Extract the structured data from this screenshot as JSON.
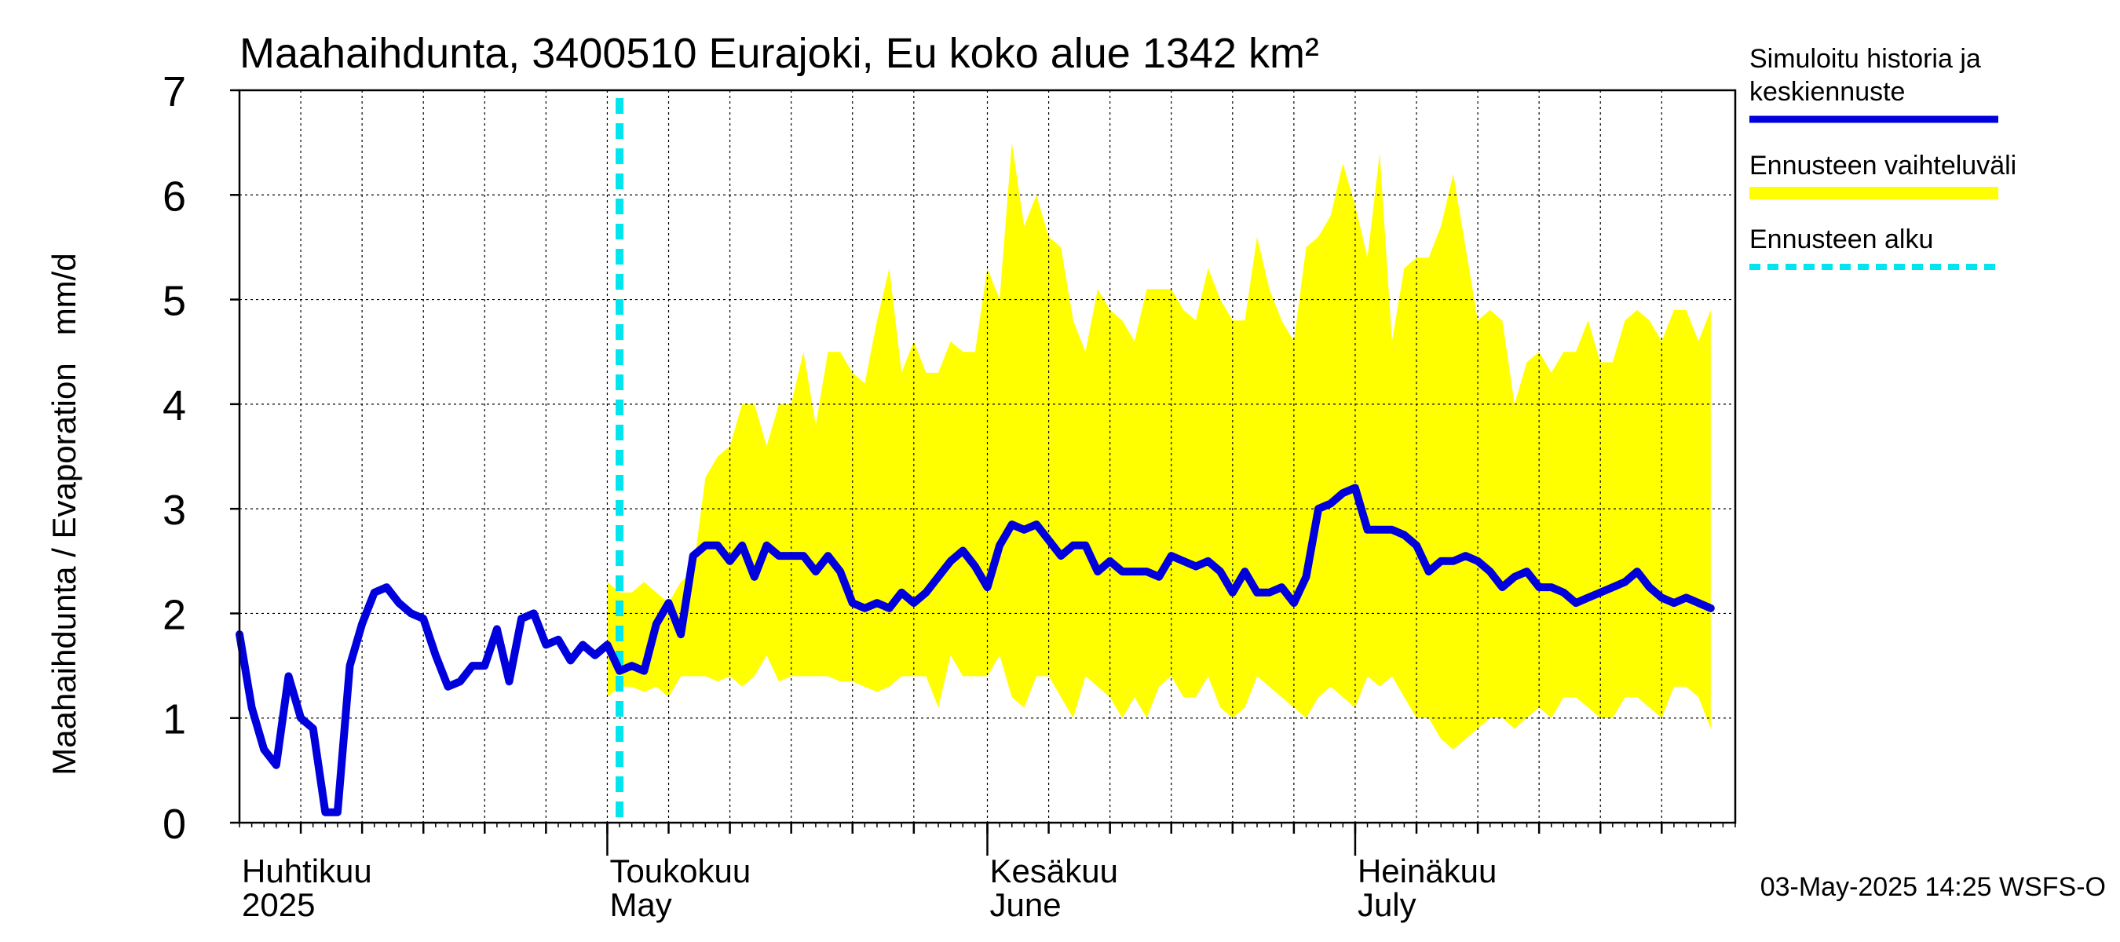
{
  "chart_data": {
    "type": "area",
    "title": "Maahaihdunta, 3400510 Eurajoki, Eu koko alue 1342 km²",
    "ylabel": "Maahaihdunta / Evaporation   mm/d",
    "xlabel": "",
    "ylim": [
      0,
      7
    ],
    "yticks": [
      0,
      1,
      2,
      3,
      4,
      5,
      6,
      7
    ],
    "xlim": [
      "2025-04-01",
      "2025-08-01"
    ],
    "grid": true,
    "month_labels": [
      {
        "date": "2025-04-01",
        "fi": "Huhtikuu",
        "en": "2025"
      },
      {
        "date": "2025-05-01",
        "fi": "Toukokuu",
        "en": "May"
      },
      {
        "date": "2025-06-01",
        "fi": "Kesäkuu",
        "en": "June"
      },
      {
        "date": "2025-07-01",
        "fi": "Heinäkuu",
        "en": "July"
      }
    ],
    "forecast_start": "2025-05-02",
    "timestamp": "03-May-2025 14:25 WSFS-O",
    "colors": {
      "history": "#0000dd",
      "range": "#ffff00",
      "forecast_start": "#00e5ee"
    },
    "legend": {
      "placement": "right",
      "entries": [
        {
          "label": "Simuloitu historia ja keskiennuste",
          "lines": [
            "Simuloitu historia ja",
            "keskiennuste"
          ],
          "style": "line",
          "color": "#0000dd"
        },
        {
          "label": "Ennusteen vaihteluväli",
          "lines": [
            "Ennusteen vaihteluväli"
          ],
          "style": "band",
          "color": "#ffff00"
        },
        {
          "label": "Ennusteen alku",
          "lines": [
            "Ennusteen alku"
          ],
          "style": "dashed",
          "color": "#00e5ee"
        }
      ]
    },
    "series": [
      {
        "name": "Simuloitu historia ja keskiennuste",
        "start": "2025-04-01",
        "values": [
          1.8,
          1.1,
          0.7,
          0.55,
          1.4,
          1.0,
          0.9,
          0.1,
          0.1,
          1.5,
          1.9,
          2.2,
          2.25,
          2.1,
          2.0,
          1.95,
          1.6,
          1.3,
          1.35,
          1.5,
          1.5,
          1.85,
          1.35,
          1.95,
          2.0,
          1.7,
          1.75,
          1.55,
          1.7,
          1.6,
          1.7,
          1.45,
          1.5,
          1.45,
          1.9,
          2.1,
          1.8,
          2.55,
          2.65,
          2.65,
          2.5,
          2.65,
          2.35,
          2.65,
          2.55,
          2.55,
          2.55,
          2.4,
          2.55,
          2.4,
          2.1,
          2.05,
          2.1,
          2.05,
          2.2,
          2.1,
          2.2,
          2.35,
          2.5,
          2.6,
          2.45,
          2.25,
          2.65,
          2.85,
          2.8,
          2.85,
          2.7,
          2.55,
          2.65,
          2.65,
          2.4,
          2.5,
          2.4,
          2.4,
          2.4,
          2.35,
          2.55,
          2.5,
          2.45,
          2.5,
          2.4,
          2.2,
          2.4,
          2.2,
          2.2,
          2.25,
          2.1,
          2.35,
          3.0,
          3.05,
          3.15,
          3.2,
          2.8,
          2.8,
          2.8,
          2.75,
          2.65,
          2.4,
          2.5,
          2.5,
          2.55,
          2.5,
          2.4,
          2.25,
          2.35,
          2.4,
          2.25,
          2.25,
          2.2,
          2.1,
          2.15,
          2.2,
          2.25,
          2.3,
          2.4,
          2.25,
          2.15,
          2.1,
          2.15,
          2.1,
          2.05
        ]
      },
      {
        "name": "Ennusteen vaihteluväli",
        "start": "2025-05-01",
        "upper": [
          2.3,
          2.2,
          2.2,
          2.3,
          2.2,
          2.1,
          2.3,
          2.4,
          3.3,
          3.5,
          3.6,
          4.0,
          4.0,
          3.6,
          4.0,
          4.0,
          4.5,
          3.8,
          4.5,
          4.5,
          4.3,
          4.2,
          4.8,
          5.3,
          4.3,
          4.6,
          4.3,
          4.3,
          4.6,
          4.5,
          4.5,
          5.3,
          5.0,
          6.5,
          5.7,
          6.0,
          5.6,
          5.5,
          4.8,
          4.5,
          5.1,
          4.9,
          4.8,
          4.6,
          5.1,
          5.1,
          5.1,
          4.9,
          4.8,
          5.3,
          5.0,
          4.8,
          4.8,
          5.6,
          5.1,
          4.8,
          4.6,
          5.5,
          5.6,
          5.8,
          6.3,
          5.9,
          5.4,
          6.4,
          4.6,
          5.3,
          5.4,
          5.4,
          5.7,
          6.2,
          5.5,
          4.8,
          4.9,
          4.8,
          4.0,
          4.4,
          4.5,
          4.3,
          4.5,
          4.5,
          4.8,
          4.4,
          4.4,
          4.8,
          4.9,
          4.8,
          4.6,
          4.9,
          4.9,
          4.6,
          4.9
        ],
        "lower": [
          1.2,
          1.3,
          1.3,
          1.25,
          1.3,
          1.2,
          1.4,
          1.4,
          1.4,
          1.35,
          1.4,
          1.3,
          1.4,
          1.6,
          1.35,
          1.4,
          1.4,
          1.4,
          1.4,
          1.35,
          1.35,
          1.3,
          1.25,
          1.3,
          1.4,
          1.4,
          1.4,
          1.1,
          1.6,
          1.4,
          1.4,
          1.4,
          1.6,
          1.2,
          1.1,
          1.4,
          1.4,
          1.2,
          1.0,
          1.4,
          1.3,
          1.2,
          1.0,
          1.2,
          1.0,
          1.3,
          1.4,
          1.2,
          1.2,
          1.4,
          1.1,
          1.0,
          1.1,
          1.4,
          1.3,
          1.2,
          1.1,
          1.0,
          1.2,
          1.3,
          1.2,
          1.1,
          1.4,
          1.3,
          1.4,
          1.2,
          1.0,
          1.0,
          0.8,
          0.7,
          0.8,
          0.9,
          1.0,
          1.0,
          0.9,
          1.0,
          1.1,
          1.0,
          1.2,
          1.2,
          1.1,
          1.0,
          1.0,
          1.2,
          1.2,
          1.1,
          1.0,
          1.3,
          1.3,
          1.2,
          0.9
        ]
      }
    ]
  }
}
